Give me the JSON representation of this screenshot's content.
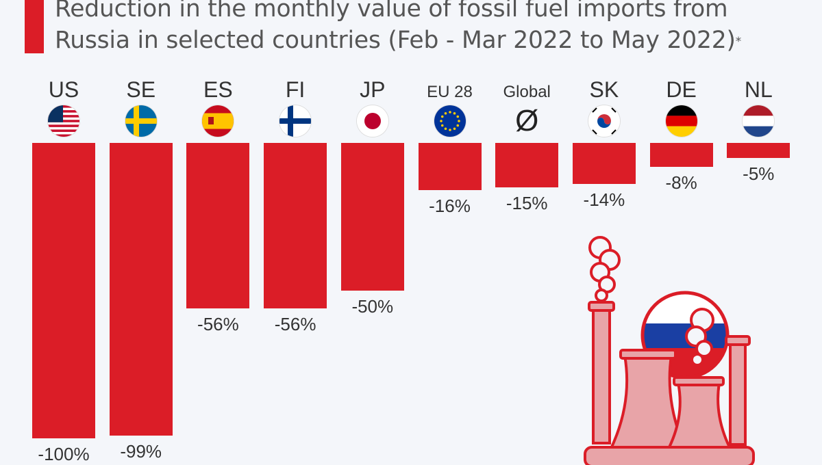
{
  "title": {
    "line1": "Reduction in the monthly value of fossil fuel imports from",
    "line2": "Russia in selected countries (Feb - Mar 2022 to May 2022)",
    "footnote_mark": "*"
  },
  "chart_data": {
    "type": "bar",
    "title": "Reduction in the monthly value of fossil fuel imports from Russia in selected countries (Feb - Mar 2022 to May 2022)*",
    "categories": [
      "US",
      "SE",
      "ES",
      "FI",
      "JP",
      "EU 28",
      "Global",
      "SK",
      "DE",
      "NL"
    ],
    "values": [
      -100,
      -99,
      -56,
      -56,
      -50,
      -16,
      -15,
      -14,
      -8,
      -5
    ],
    "value_labels": [
      "-100%",
      "-99%",
      "-56%",
      "-56%",
      "-50%",
      "-16%",
      "-15%",
      "-14%",
      "-8%",
      "-5%"
    ],
    "ylim": [
      -100,
      0
    ],
    "unit": "%",
    "bar_color": "#db1d27",
    "grid": false
  },
  "markers": {
    "global_average_symbol": "Ø"
  },
  "flags": [
    "us-flag-icon",
    "sweden-flag-icon",
    "spain-flag-icon",
    "finland-flag-icon",
    "japan-flag-icon",
    "eu-flag-icon",
    "",
    "south-korea-flag-icon",
    "germany-flag-icon",
    "netherlands-flag-icon"
  ],
  "colors": {
    "accent": "#db1d27",
    "background": "#f4f6fa",
    "illustration": "#e8a4a8",
    "russia_flag": [
      "#ffffff",
      "#1a3fa3",
      "#db1d27"
    ]
  },
  "illustration": "power-plant-icon"
}
